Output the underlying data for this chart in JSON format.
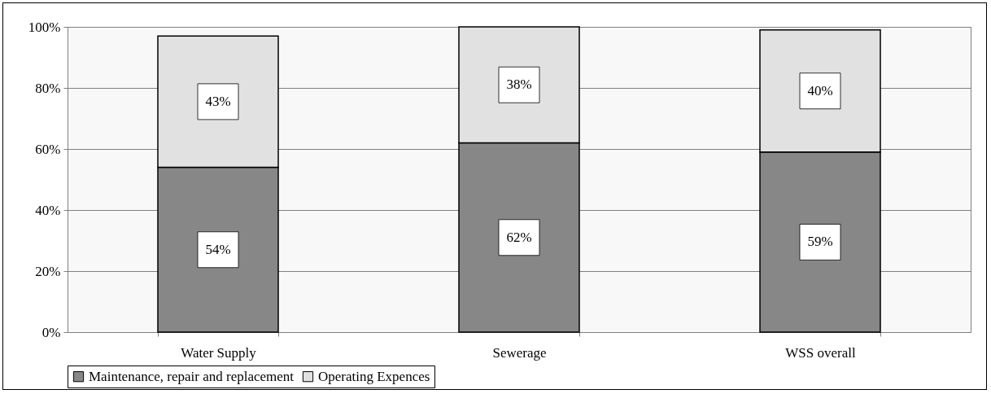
{
  "chart_data": {
    "type": "bar",
    "stacked": true,
    "categories": [
      "Water Supply",
      "Sewerage",
      "WSS overall"
    ],
    "series": [
      {
        "name": "Maintenance, repair and replacement",
        "color": "#878787",
        "values": [
          54,
          62,
          59
        ],
        "value_labels": [
          "54%",
          "62%",
          "59%"
        ]
      },
      {
        "name": "Operating Expences",
        "color": "#e1e1e1",
        "values": [
          43,
          38,
          40
        ],
        "value_labels": [
          "43%",
          "38%",
          "40%"
        ]
      }
    ],
    "ylim": [
      0,
      100
    ],
    "yticks": [
      {
        "value": 0,
        "label": "0%"
      },
      {
        "value": 20,
        "label": "20%"
      },
      {
        "value": 40,
        "label": "40%"
      },
      {
        "value": 60,
        "label": "60%"
      },
      {
        "value": 80,
        "label": "80%"
      },
      {
        "value": 100,
        "label": "100%"
      }
    ],
    "grid": "y",
    "legend": "bottom"
  }
}
